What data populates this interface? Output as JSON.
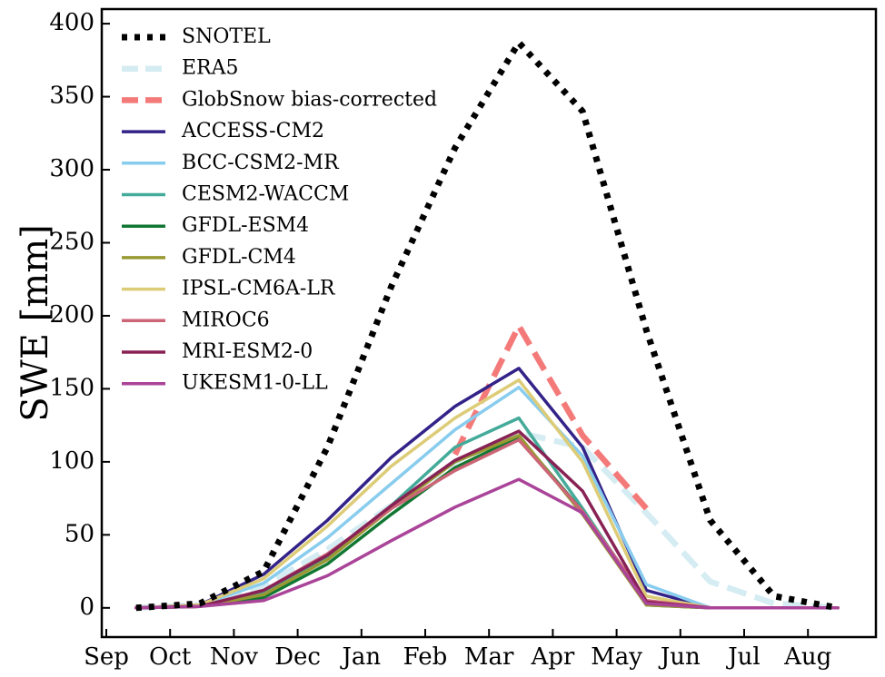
{
  "chart_data": {
    "type": "line",
    "title": "",
    "xlabel": "",
    "ylabel": "SWE [mm]",
    "x_ticks": [
      "Sep",
      "Oct",
      "Nov",
      "Dec",
      "Jan",
      "Feb",
      "Mar",
      "Apr",
      "May",
      "Jun",
      "Jul",
      "Aug"
    ],
    "y_ticks": [
      0,
      50,
      100,
      150,
      200,
      250,
      300,
      350,
      400
    ],
    "ylim": [
      -20,
      410
    ],
    "grid": false,
    "legend_position": "top-left",
    "series": [
      {
        "name": "SNOTEL",
        "color": "#000000",
        "style": "dotted",
        "x": [
          "Sep 15",
          "Oct 15",
          "Nov 15",
          "Dec 15",
          "Jan 15",
          "Feb 15",
          "Mar 15",
          "Apr 15",
          "May 15",
          "Jun 15",
          "Jul 15",
          "Aug 15"
        ],
        "y": [
          0,
          3,
          25,
          110,
          220,
          315,
          387,
          340,
          190,
          60,
          8,
          0
        ]
      },
      {
        "name": "ERA5",
        "color": "#d4ecf2",
        "style": "dashed",
        "x": [
          "Sep 15",
          "Oct 15",
          "Nov 15",
          "Dec 15",
          "Jan 15",
          "Feb 15",
          "Mar 15",
          "Apr 15",
          "May 15",
          "Jun 15",
          "Jul 15",
          "Aug 15"
        ],
        "y": [
          0,
          2,
          15,
          40,
          70,
          100,
          120,
          110,
          65,
          18,
          3,
          0
        ]
      },
      {
        "name": "GlobSnow bias-corrected",
        "color": "#f47a7a",
        "style": "dashed",
        "x": [
          "Feb 15",
          "Mar 15",
          "Apr 15",
          "May 15"
        ],
        "y": [
          105,
          193,
          118,
          68
        ]
      },
      {
        "name": "ACCESS-CM2",
        "color": "#332288",
        "style": "solid",
        "x": [
          "Sep 15",
          "Oct 15",
          "Nov 15",
          "Dec 15",
          "Jan 15",
          "Feb 15",
          "Mar 15",
          "Apr 15",
          "May 15",
          "Jun 15",
          "Jul 15",
          "Aug 15"
        ],
        "y": [
          0,
          2,
          23,
          60,
          103,
          138,
          164,
          110,
          12,
          0,
          0,
          0
        ]
      },
      {
        "name": "BCC-CSM2-MR",
        "color": "#88ccee",
        "style": "solid",
        "x": [
          "Sep 15",
          "Oct 15",
          "Nov 15",
          "Dec 15",
          "Jan 15",
          "Feb 15",
          "Mar 15",
          "Apr 15",
          "May 15",
          "Jun 15",
          "Jul 15",
          "Aug 15"
        ],
        "y": [
          0,
          2,
          17,
          48,
          85,
          122,
          151,
          104,
          16,
          0,
          0,
          0
        ]
      },
      {
        "name": "CESM2-WACCM",
        "color": "#44aa99",
        "style": "solid",
        "x": [
          "Sep 15",
          "Oct 15",
          "Nov 15",
          "Dec 15",
          "Jan 15",
          "Feb 15",
          "Mar 15",
          "Apr 15",
          "May 15",
          "Jun 15",
          "Jul 15",
          "Aug 15"
        ],
        "y": [
          0,
          1,
          10,
          34,
          70,
          110,
          130,
          68,
          3,
          0,
          0,
          0
        ]
      },
      {
        "name": "GFDL-ESM4",
        "color": "#117733",
        "style": "solid",
        "x": [
          "Sep 15",
          "Oct 15",
          "Nov 15",
          "Dec 15",
          "Jan 15",
          "Feb 15",
          "Mar 15",
          "Apr 15",
          "May 15",
          "Jun 15",
          "Jul 15",
          "Aug 15"
        ],
        "y": [
          0,
          1,
          7,
          30,
          64,
          96,
          117,
          66,
          2,
          0,
          0,
          0
        ]
      },
      {
        "name": "GFDL-CM4",
        "color": "#999933",
        "style": "solid",
        "x": [
          "Sep 15",
          "Oct 15",
          "Nov 15",
          "Dec 15",
          "Jan 15",
          "Feb 15",
          "Mar 15",
          "Apr 15",
          "May 15",
          "Jun 15",
          "Jul 15",
          "Aug 15"
        ],
        "y": [
          0,
          1,
          9,
          33,
          68,
          100,
          118,
          64,
          2,
          0,
          0,
          0
        ]
      },
      {
        "name": "IPSL-CM6A-LR",
        "color": "#ddcc77",
        "style": "solid",
        "x": [
          "Sep 15",
          "Oct 15",
          "Nov 15",
          "Dec 15",
          "Jan 15",
          "Feb 15",
          "Mar 15",
          "Apr 15",
          "May 15",
          "Jun 15",
          "Jul 15",
          "Aug 15"
        ],
        "y": [
          0,
          2,
          20,
          56,
          97,
          130,
          156,
          100,
          8,
          0,
          0,
          0
        ]
      },
      {
        "name": "MIROC6",
        "color": "#cc6677",
        "style": "solid",
        "x": [
          "Sep 15",
          "Oct 15",
          "Nov 15",
          "Dec 15",
          "Jan 15",
          "Feb 15",
          "Mar 15",
          "Apr 15",
          "May 15",
          "Jun 15",
          "Jul 15",
          "Aug 15"
        ],
        "y": [
          0,
          1,
          12,
          37,
          68,
          94,
          115,
          66,
          5,
          0,
          0,
          0
        ]
      },
      {
        "name": "MRI-ESM2-0",
        "color": "#882255",
        "style": "solid",
        "x": [
          "Sep 15",
          "Oct 15",
          "Nov 15",
          "Dec 15",
          "Jan 15",
          "Feb 15",
          "Mar 15",
          "Apr 15",
          "May 15",
          "Jun 15",
          "Jul 15",
          "Aug 15"
        ],
        "y": [
          0,
          1,
          12,
          36,
          70,
          101,
          121,
          80,
          4,
          0,
          0,
          0
        ]
      },
      {
        "name": "UKESM1-0-LL",
        "color": "#aa4499",
        "style": "solid",
        "x": [
          "Sep 15",
          "Oct 15",
          "Nov 15",
          "Dec 15",
          "Jan 15",
          "Feb 15",
          "Mar 15",
          "Apr 15",
          "May 15",
          "Jun 15",
          "Jul 15",
          "Aug 15"
        ],
        "y": [
          0,
          1,
          5,
          22,
          46,
          69,
          88,
          65,
          3,
          0,
          0,
          0
        ]
      }
    ]
  }
}
